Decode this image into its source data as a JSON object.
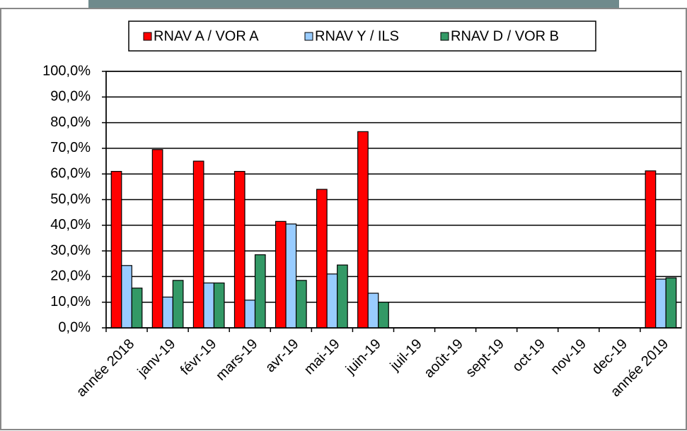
{
  "chart_data": {
    "type": "bar",
    "categories": [
      "année 2018",
      "janv-19",
      "févr-19",
      "mars-19",
      "avr-19",
      "mai-19",
      "juin-19",
      "juil-19",
      "août-19",
      "sept-19",
      "oct-19",
      "nov-19",
      "dec-19",
      "année 2019"
    ],
    "series": [
      {
        "name": "RNAV A / VOR A",
        "color": "#ff0000",
        "values": [
          61,
          69.5,
          65,
          61,
          41.5,
          54,
          76.5,
          null,
          null,
          null,
          null,
          null,
          null,
          61.2
        ]
      },
      {
        "name": "RNAV Y / ILS",
        "color": "#99ccff",
        "values": [
          24.3,
          12,
          17.5,
          10.8,
          40.5,
          21,
          13.5,
          null,
          null,
          null,
          null,
          null,
          null,
          19
        ]
      },
      {
        "name": "RNAV D / VOR B",
        "color": "#339966",
        "values": [
          15.5,
          18.5,
          17.5,
          28.5,
          18.5,
          24.5,
          10,
          null,
          null,
          null,
          null,
          null,
          null,
          19.5
        ]
      }
    ],
    "ylim": [
      0,
      100
    ],
    "yticks": [
      {
        "value": 0,
        "label": "0,0%"
      },
      {
        "value": 10,
        "label": "10,0%"
      },
      {
        "value": 20,
        "label": "20,0%"
      },
      {
        "value": 30,
        "label": "30,0%"
      },
      {
        "value": 40,
        "label": "40,0%"
      },
      {
        "value": 50,
        "label": "50,0%"
      },
      {
        "value": 60,
        "label": "60,0%"
      },
      {
        "value": 70,
        "label": "70,0%"
      },
      {
        "value": 80,
        "label": "80,0%"
      },
      {
        "value": 90,
        "label": "90,0%"
      },
      {
        "value": 100,
        "label": "100,0%"
      }
    ],
    "grid": true,
    "legend": "top"
  }
}
